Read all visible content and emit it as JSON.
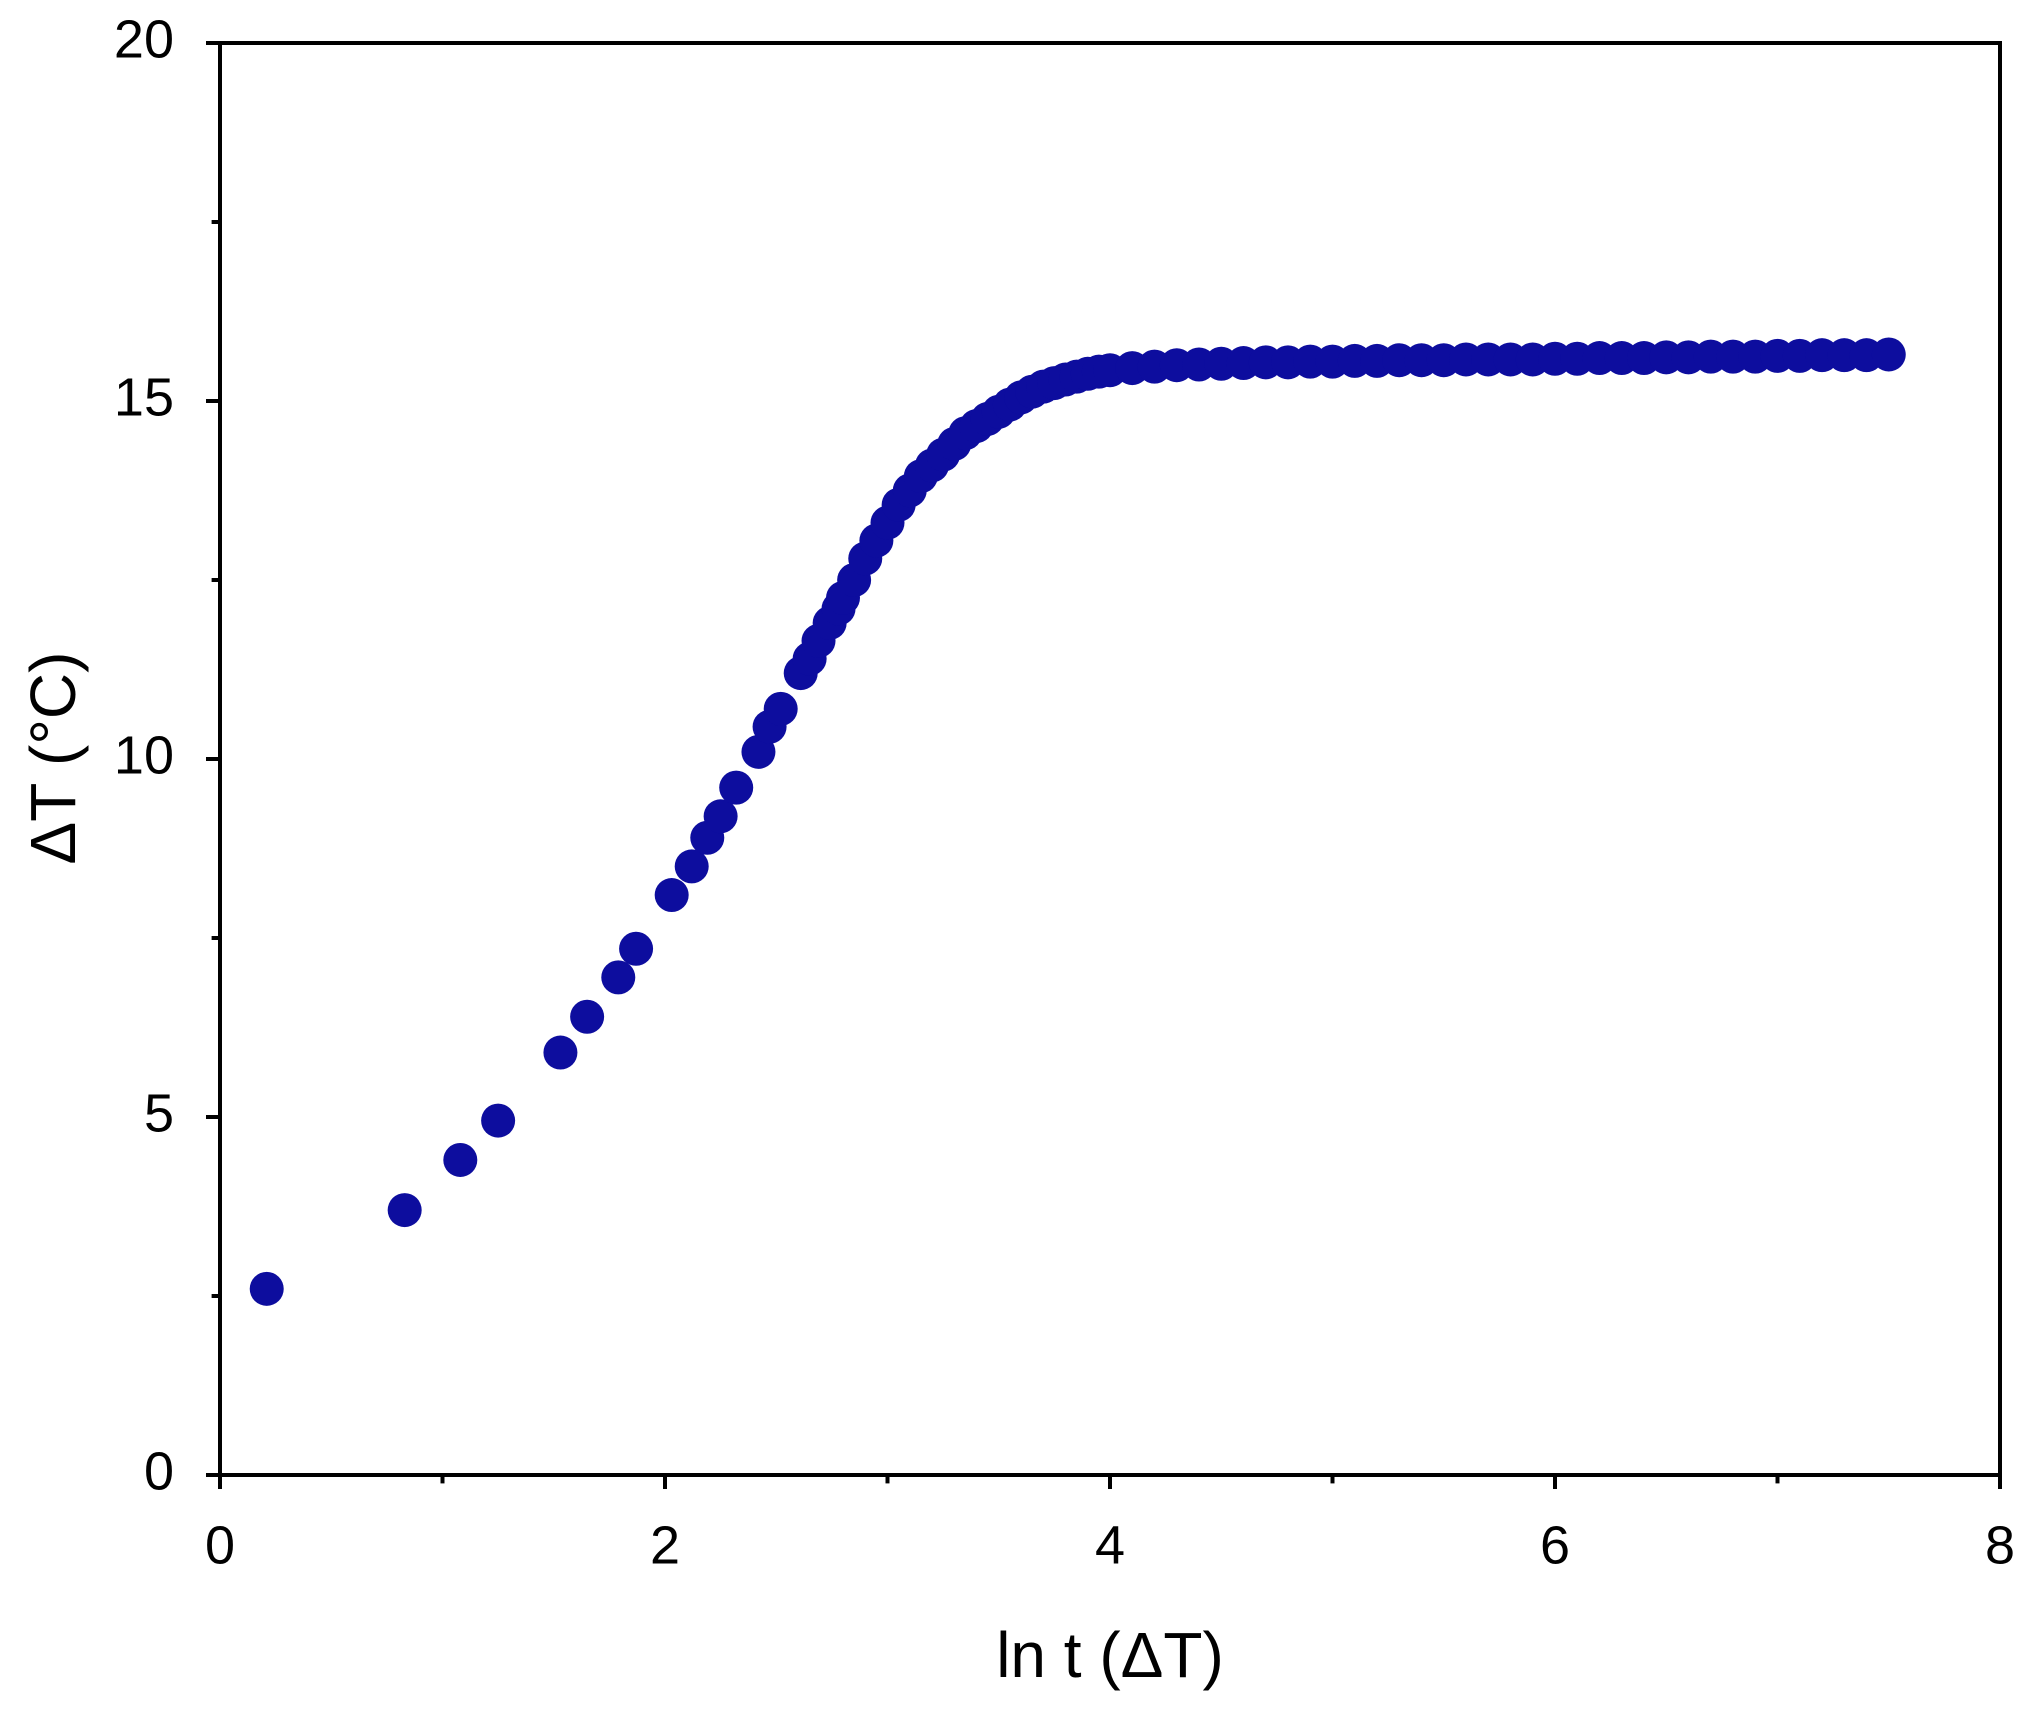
{
  "chart_data": {
    "type": "scatter",
    "xlabel": "ln t (ΔT)",
    "ylabel": "ΔT (°C)",
    "color": "#0d0d9e",
    "xlim": [
      0,
      8
    ],
    "ylim": [
      0,
      20
    ],
    "xticks": [
      0,
      2,
      4,
      6,
      8
    ],
    "yticks": [
      0,
      5,
      10,
      15,
      20
    ],
    "xminorticks": [
      1,
      3,
      5,
      7
    ],
    "yminorticks": [
      2.5,
      7.5,
      12.5,
      17.5
    ],
    "x": [
      0.21,
      0.83,
      1.08,
      1.25,
      1.53,
      1.65,
      1.79,
      1.87,
      2.03,
      2.12,
      2.19,
      2.25,
      2.32,
      2.42,
      2.47,
      2.52,
      2.61,
      2.65,
      2.69,
      2.74,
      2.78,
      2.8,
      2.85,
      2.9,
      2.95,
      3.0,
      3.05,
      3.1,
      3.15,
      3.2,
      3.25,
      3.3,
      3.35,
      3.4,
      3.45,
      3.5,
      3.55,
      3.6,
      3.65,
      3.7,
      3.75,
      3.8,
      3.85,
      3.9,
      3.95,
      4.0,
      4.1,
      4.2,
      4.3,
      4.4,
      4.5,
      4.6,
      4.7,
      4.8,
      4.9,
      5.0,
      5.1,
      5.2,
      5.3,
      5.4,
      5.5,
      5.6,
      5.7,
      5.8,
      5.9,
      6.0,
      6.1,
      6.2,
      6.3,
      6.4,
      6.5,
      6.6,
      6.7,
      6.8,
      6.9,
      7.0,
      7.1,
      7.2,
      7.3,
      7.4,
      7.5
    ],
    "y": [
      2.6,
      3.7,
      4.4,
      4.95,
      5.9,
      6.4,
      6.95,
      7.35,
      8.1,
      8.5,
      8.9,
      9.2,
      9.6,
      10.1,
      10.45,
      10.7,
      11.2,
      11.4,
      11.65,
      11.9,
      12.1,
      12.25,
      12.5,
      12.8,
      13.05,
      13.3,
      13.55,
      13.75,
      13.95,
      14.1,
      14.25,
      14.4,
      14.55,
      14.65,
      14.75,
      14.85,
      14.95,
      15.05,
      15.13,
      15.2,
      15.25,
      15.3,
      15.34,
      15.38,
      15.41,
      15.43,
      15.46,
      15.48,
      15.5,
      15.51,
      15.52,
      15.53,
      15.54,
      15.54,
      15.55,
      15.55,
      15.56,
      15.56,
      15.57,
      15.57,
      15.57,
      15.58,
      15.58,
      15.58,
      15.58,
      15.59,
      15.59,
      15.6,
      15.6,
      15.6,
      15.61,
      15.61,
      15.62,
      15.62,
      15.62,
      15.63,
      15.63,
      15.64,
      15.64,
      15.64,
      15.65
    ]
  }
}
